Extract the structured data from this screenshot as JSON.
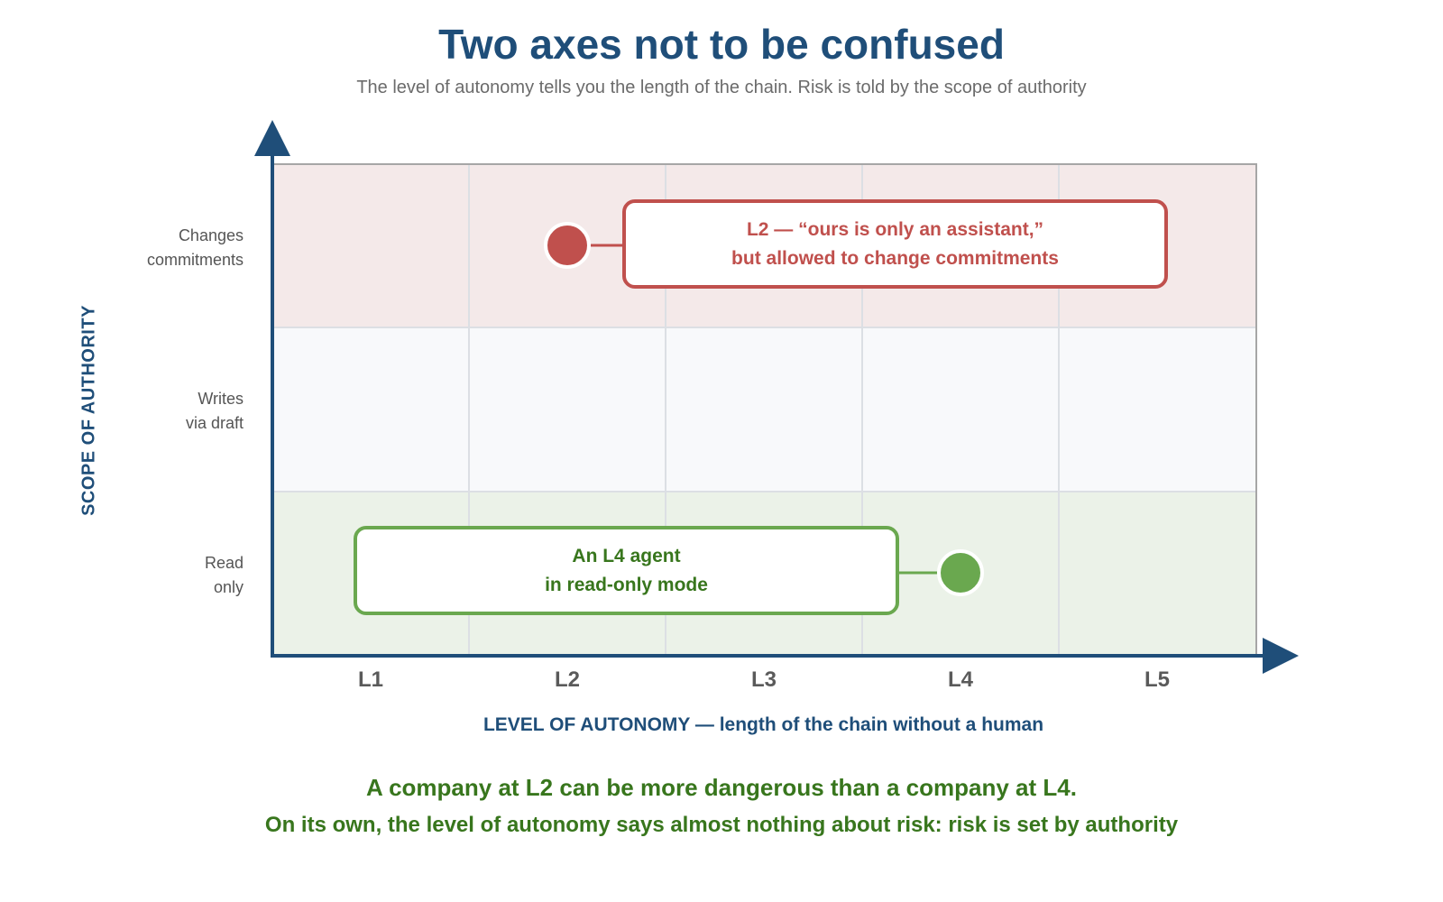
{
  "title": "Two axes not to be confused",
  "subtitle": "The level of autonomy tells you the length of the chain. Risk is told by the scope of authority",
  "y_axis": {
    "title": "SCOPE OF AUTHORITY",
    "rows": [
      {
        "line1": "Changes",
        "line2": "commitments",
        "band_color": "#f4e9e9"
      },
      {
        "line1": "Writes",
        "line2": "via draft",
        "band_color": "#f8f9fb"
      },
      {
        "line1": "Read",
        "line2": "only",
        "band_color": "#ebf2e8"
      }
    ]
  },
  "x_axis": {
    "title": "LEVEL OF AUTONOMY — length of the chain without a human",
    "levels": [
      "L1",
      "L2",
      "L3",
      "L4",
      "L5"
    ]
  },
  "points": [
    {
      "level": "L2",
      "scope": "Changes commitments",
      "color": "#c0504d"
    },
    {
      "level": "L4",
      "scope": "Read only",
      "color": "#6aa84f"
    }
  ],
  "callouts": {
    "red": {
      "line1": "L2 — “ours is only an assistant,”",
      "line2": "but allowed to change commitments"
    },
    "green": {
      "line1": "An L4 agent",
      "line2": "in read-only mode"
    }
  },
  "conclusion": {
    "line1": "A company at L2 can be more dangerous than a company at L4.",
    "line2": "On its own, the level of autonomy says almost nothing about risk: risk is set by authority"
  },
  "colors": {
    "axis": "#1f4e79",
    "grid": "#dcdfe4",
    "red": "#c0504d",
    "green": "#6aa84f",
    "green_text": "#38761d"
  }
}
